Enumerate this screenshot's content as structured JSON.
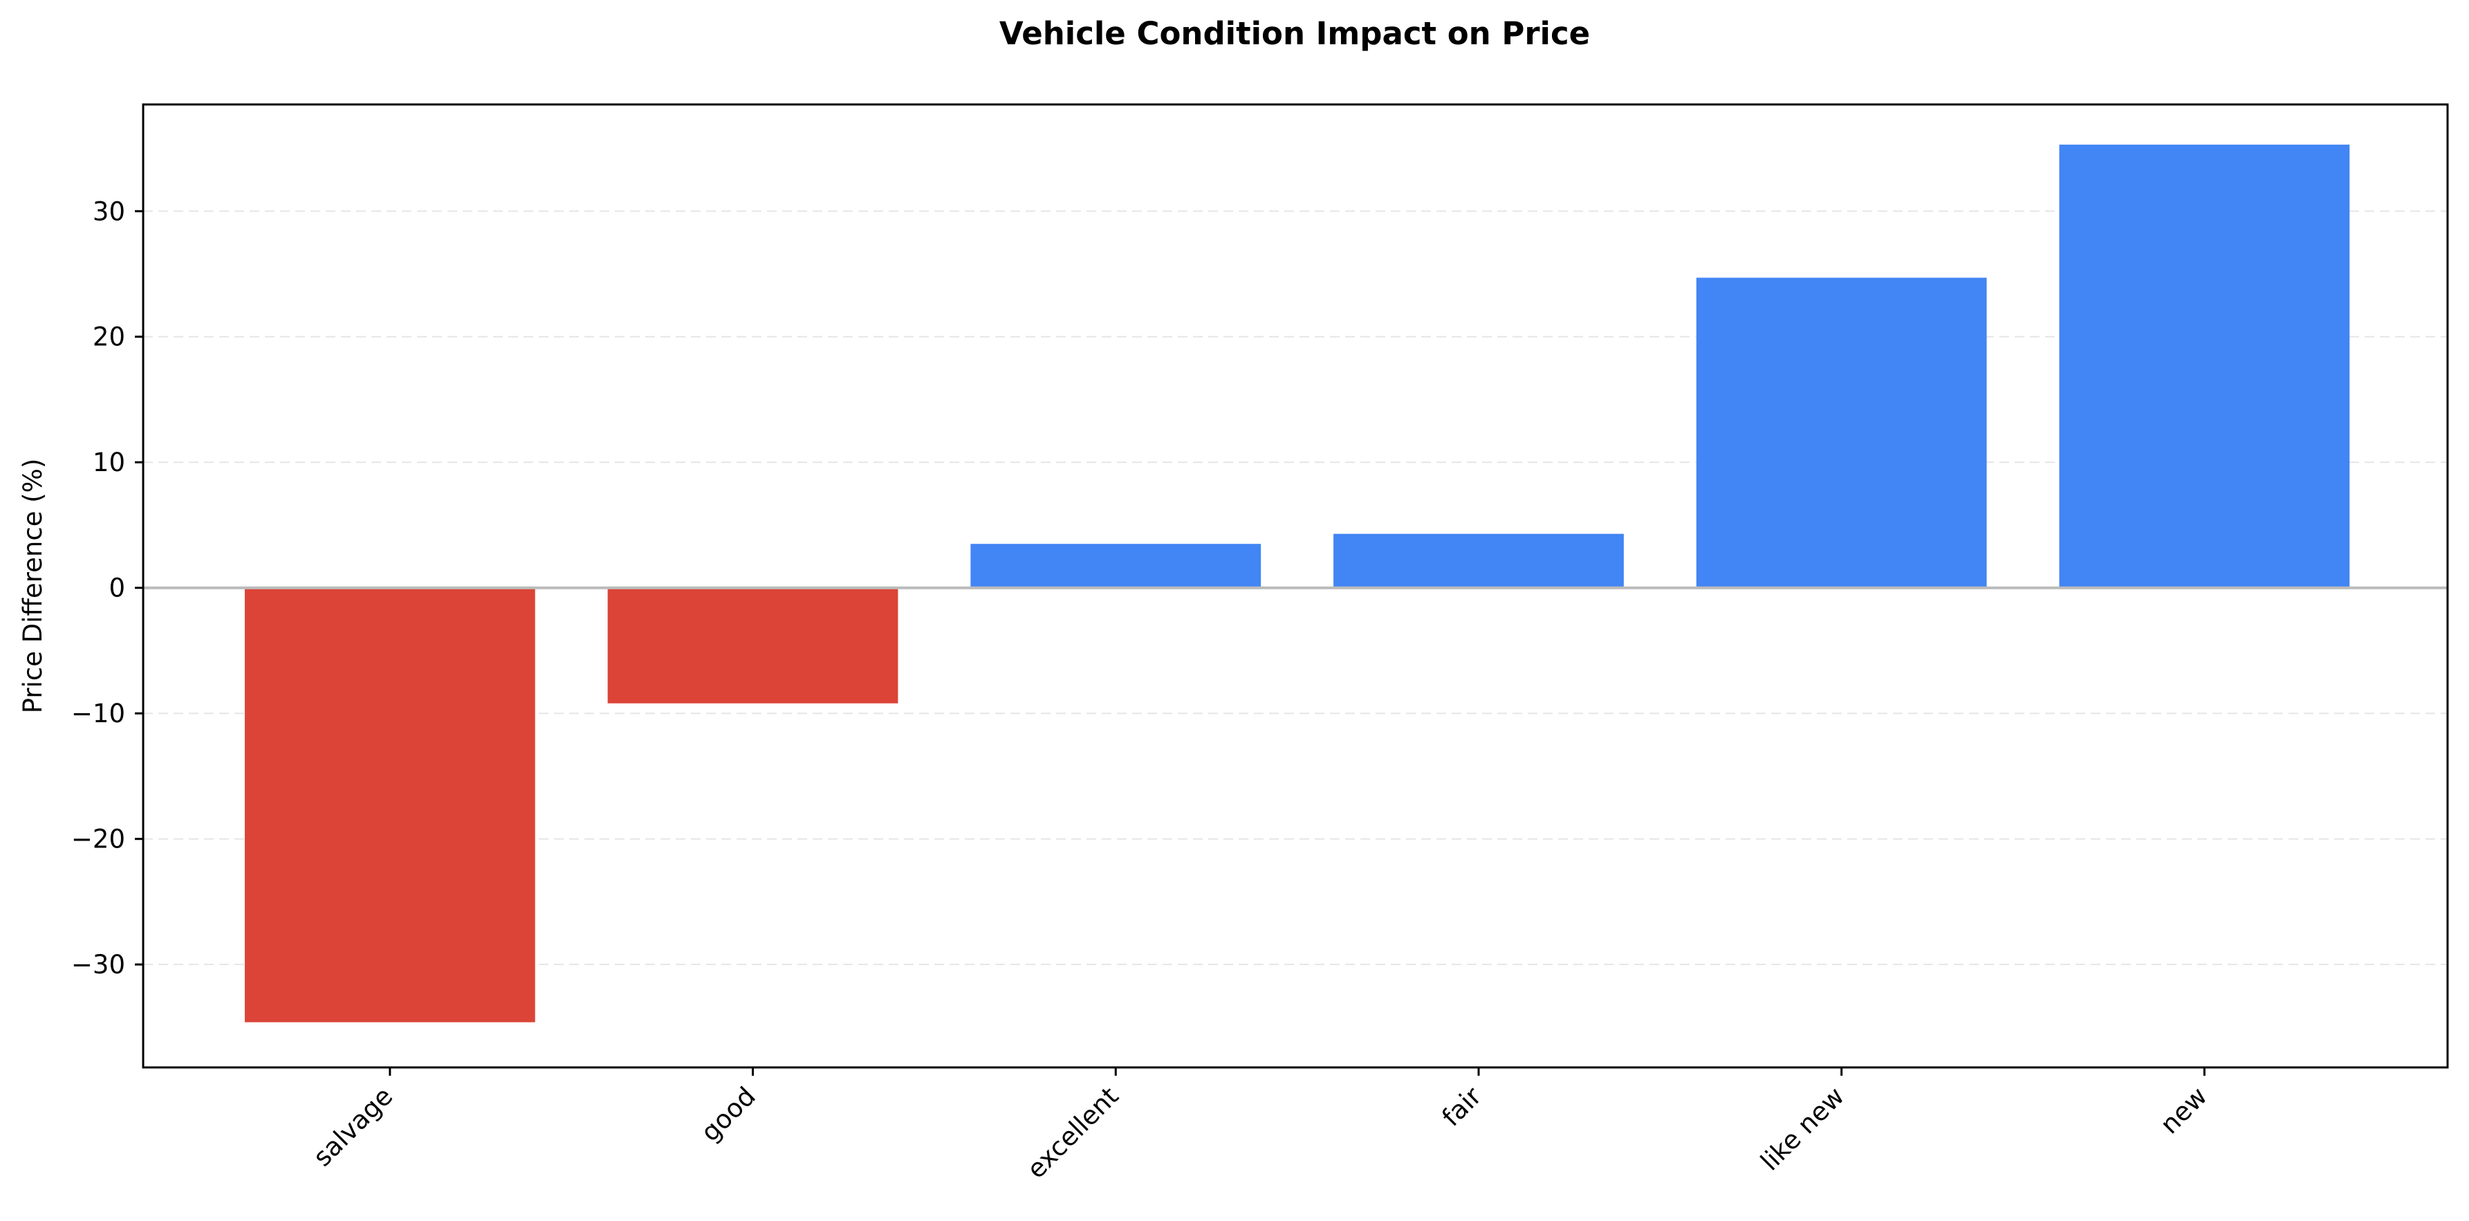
{
  "chart_data": {
    "type": "bar",
    "title": "Vehicle Condition Impact on Price",
    "xlabel": "",
    "ylabel": "Price Difference (%)",
    "categories": [
      "salvage",
      "good",
      "excellent",
      "fair",
      "like new",
      "new"
    ],
    "values": [
      -34.6,
      -9.2,
      3.5,
      4.3,
      24.7,
      35.3
    ],
    "ylim": [
      -38.2,
      38.5
    ],
    "yticks": [
      -30,
      -20,
      -10,
      0,
      10,
      20,
      30
    ],
    "ytick_labels": [
      "−30",
      "−20",
      "−10",
      "0",
      "10",
      "20",
      "30"
    ],
    "grid": "y-dashed",
    "legend": "none",
    "colors": {
      "positive": "#4285f4",
      "negative": "#db4437",
      "zero_line": "#bbbbbb",
      "grid": "#e6e6e6",
      "axis": "#000000"
    }
  }
}
